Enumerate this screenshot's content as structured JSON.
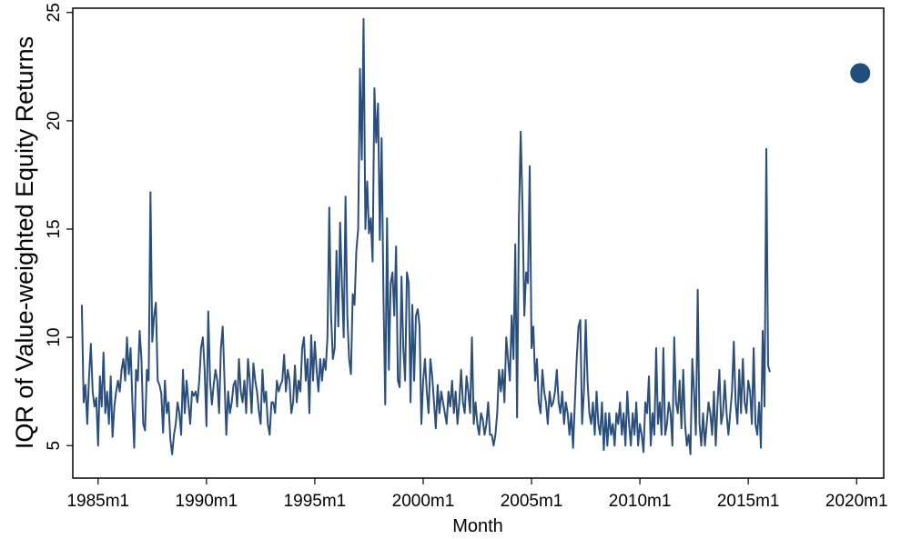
{
  "chart_data": {
    "type": "line",
    "title": "",
    "xlabel": "Month",
    "ylabel": "IQR of Value-weighted Equity Returns",
    "xlim": [
      "1983m11",
      "2021m4"
    ],
    "ylim": [
      3.5,
      25.2
    ],
    "grid": false,
    "legend": "none",
    "line_color": "#2b4f7a",
    "marker_color": "#1f4e7a",
    "x_ticks": [
      "1985m1",
      "1990m1",
      "1995m1",
      "2000m1",
      "2005m1",
      "2010m1",
      "2015m1",
      "2020m1"
    ],
    "y_ticks": [
      "5",
      "10",
      "15",
      "20",
      "25"
    ],
    "series": [
      {
        "x_start": "1984m4",
        "frequency": "monthly",
        "y": [
          11.5,
          7.0,
          7.8,
          6.0,
          8.2,
          9.7,
          7.5,
          6.8,
          7.2,
          5.0,
          8.2,
          6.8,
          9.3,
          6.5,
          7.5,
          6.0,
          8.2,
          5.4,
          6.8,
          7.5,
          8.0,
          7.5,
          8.5,
          9.0,
          8.0,
          10.0,
          8.3,
          9.5,
          7.0,
          4.9,
          8.5,
          8.0,
          10.3,
          9.0,
          6.0,
          5.7,
          8.5,
          8.0,
          16.7,
          9.8,
          11.0,
          11.6,
          8.0,
          7.8,
          7.4,
          5.6,
          8.0,
          6.5,
          7.0,
          5.3,
          4.6,
          5.5,
          6.0,
          7.0,
          6.5,
          5.5,
          8.5,
          6.5,
          8.0,
          7.0,
          6.0,
          7.5,
          7.3,
          7.5,
          7.0,
          8.0,
          9.5,
          10.0,
          8.5,
          5.9,
          11.2,
          8.0,
          6.9,
          7.8,
          8.5,
          8.0,
          6.5,
          9.5,
          10.5,
          8.0,
          5.5,
          7.5,
          6.5,
          7.0,
          7.8,
          8.0,
          6.8,
          9.0,
          7.5,
          7.0,
          8.0,
          6.5,
          9.0,
          8.0,
          6.5,
          8.8,
          8.0,
          7.5,
          6.6,
          6.0,
          8.5,
          7.0,
          7.5,
          6.0,
          5.5,
          7.0,
          7.0,
          6.5,
          8.0,
          7.5,
          7.8,
          8.0,
          9.2,
          7.5,
          8.5,
          8.0,
          6.5,
          7.0,
          8.7,
          7.0,
          8.0,
          7.5,
          9.5,
          10.0,
          8.0,
          9.0,
          6.5,
          10.1,
          8.0,
          9.8,
          8.5,
          7.5,
          9.0,
          8.0,
          9.0,
          8.5,
          10.0,
          16.0,
          11.0,
          9.0,
          9.5,
          14.0,
          10.5,
          15.3,
          12.5,
          10.0,
          16.5,
          11.0,
          9.0,
          8.3,
          12.0,
          11.5,
          14.0,
          15.0,
          22.4,
          18.2,
          24.7,
          15.0,
          17.2,
          14.8,
          15.5,
          13.5,
          21.5,
          19.0,
          20.8,
          14.5,
          19.2,
          12.0,
          6.9,
          15.5,
          8.5,
          12.5,
          13.0,
          11.0,
          14.2,
          8.0,
          7.7,
          12.8,
          9.5,
          8.0,
          13.0,
          12.5,
          7.0,
          11.5,
          8.0,
          11.0,
          11.3,
          10.5,
          6.0,
          8.0,
          9.0,
          7.5,
          6.5,
          9.0,
          8.2,
          7.0,
          5.8,
          7.8,
          6.5,
          7.5,
          7.0,
          6.5,
          6.0,
          7.5,
          6.8,
          8.0,
          6.5,
          7.5,
          6.0,
          7.0,
          8.5,
          7.0,
          6.5,
          8.2,
          7.5,
          6.5,
          10.0,
          6.0,
          7.0,
          6.0,
          5.5,
          6.5,
          6.2,
          5.5,
          6.0,
          7.0,
          5.5,
          5.5,
          5.0,
          5.5,
          6.5,
          8.5,
          7.5,
          8.5,
          7.0,
          10.0,
          9.0,
          8.0,
          11.0,
          9.0,
          14.3,
          6.3,
          15.5,
          19.5,
          16.0,
          11.0,
          13.0,
          12.5,
          17.9,
          9.5,
          10.5,
          8.0,
          9.0,
          7.0,
          6.5,
          8.5,
          7.5,
          7.0,
          6.0,
          7.5,
          6.8,
          7.0,
          7.5,
          8.5,
          7.0,
          6.5,
          7.5,
          6.0,
          7.0,
          6.5,
          5.5,
          6.5,
          4.9,
          7.0,
          9.0,
          10.5,
          10.8,
          6.0,
          7.5,
          10.8,
          8.0,
          6.5,
          6.0,
          7.0,
          5.5,
          7.5,
          6.0,
          5.5,
          7.0,
          4.8,
          6.5,
          5.0,
          6.5,
          5.5,
          6.0,
          5.0,
          6.5,
          6.0,
          7.0,
          5.5,
          6.5,
          5.0,
          7.5,
          6.0,
          5.0,
          6.5,
          5.5,
          7.0,
          5.0,
          6.0,
          5.5,
          4.7,
          7.0,
          6.5,
          8.2,
          5.0,
          6.5,
          5.5,
          9.5,
          6.0,
          7.0,
          5.5,
          9.5,
          5.5,
          6.0,
          7.0,
          6.5,
          5.0,
          10.0,
          7.0,
          6.5,
          8.0,
          5.8,
          8.5,
          6.0,
          5.0,
          5.5,
          4.6,
          9.0,
          7.5,
          5.5,
          12.2,
          6.0,
          5.0,
          6.5,
          5.0,
          6.0,
          7.0,
          6.5,
          5.5,
          7.5,
          5.0,
          7.0,
          8.5,
          6.0,
          6.5,
          8.0,
          6.5,
          5.5,
          6.5,
          7.5,
          9.8,
          7.0,
          6.0,
          8.5,
          6.5,
          9.0,
          7.0,
          6.5,
          8.0,
          7.5,
          6.0,
          9.5,
          6.0,
          5.5,
          7.0,
          4.9,
          10.3,
          6.8,
          18.7,
          8.7,
          8.4
        ]
      }
    ],
    "highlight_point": {
      "x": "2020m3",
      "y": 22.2
    }
  }
}
